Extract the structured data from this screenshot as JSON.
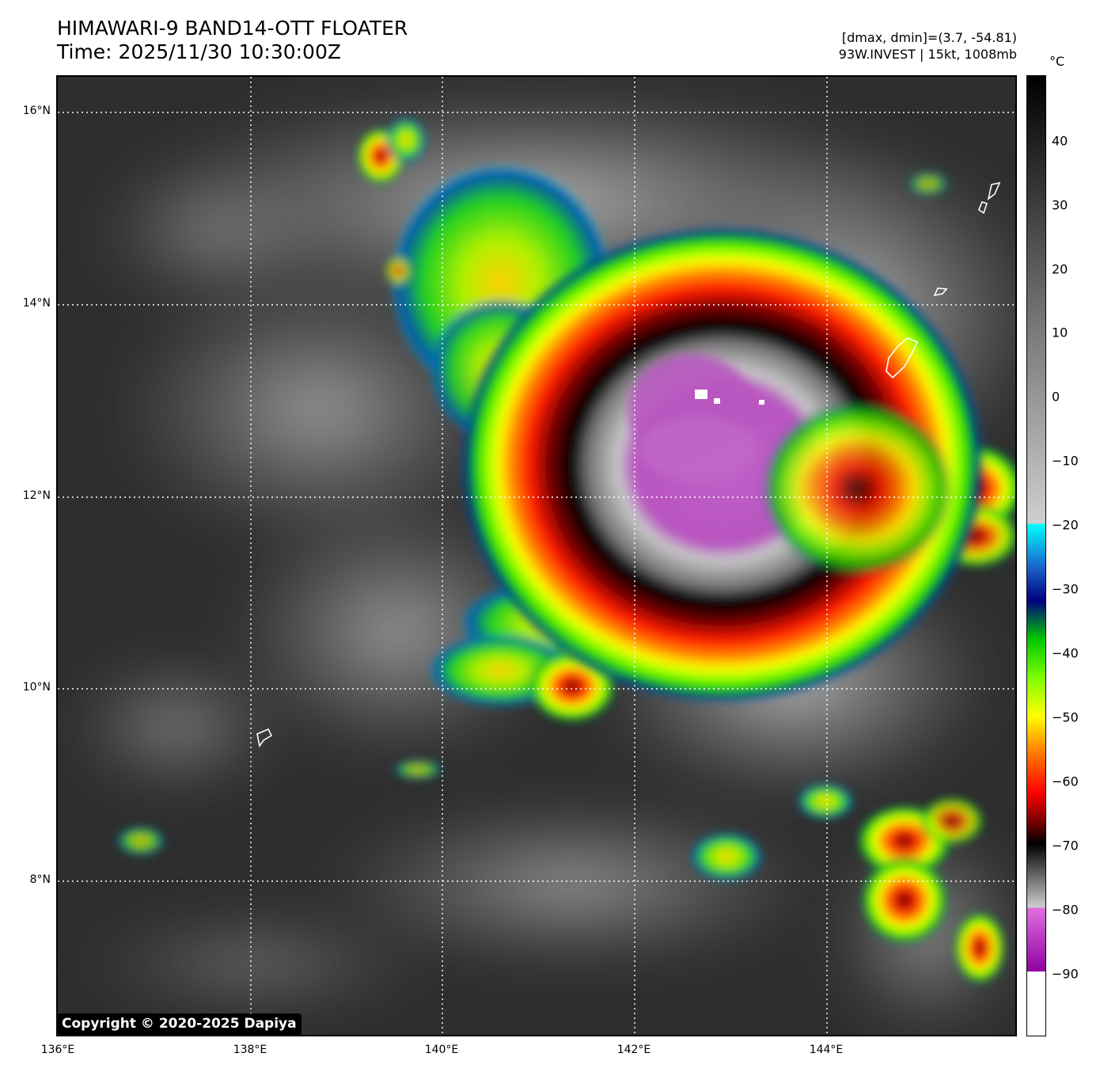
{
  "header": {
    "title_line1": "HIMAWARI-9 BAND14-OTT FLOATER",
    "title_line2": "Time: 2025/11/30 10:30:00Z",
    "info_line1": "[dmax, dmin]=(3.7, -54.81)",
    "info_line2": "93W.INVEST | 15kt, 1008mb"
  },
  "map": {
    "lat_labels": [
      "16°N",
      "14°N",
      "12°N",
      "10°N",
      "8°N"
    ],
    "lat_values": [
      16,
      14,
      12,
      10,
      8
    ],
    "lon_labels": [
      "136°E",
      "138°E",
      "140°E",
      "142°E",
      "144°E"
    ],
    "lon_values": [
      136,
      138,
      140,
      142,
      144
    ],
    "extent": {
      "lon_min": 136,
      "lon_max": 146,
      "lat_min": 6.3,
      "lat_max": 16.3
    },
    "storm_center": {
      "lon": 142.7,
      "lat": 13.0
    },
    "copyright": "Copyright © 2020-2025 Dapiya"
  },
  "colorbar": {
    "unit": "°C",
    "tick_labels": [
      "40",
      "30",
      "20",
      "10",
      "0",
      "−10",
      "−20",
      "−30",
      "−40",
      "−50",
      "−60",
      "−70",
      "−80",
      "−90"
    ],
    "tick_values": [
      40,
      30,
      20,
      10,
      0,
      -10,
      -20,
      -30,
      -40,
      -50,
      -60,
      -70,
      -80,
      -90
    ],
    "range": [
      -100,
      50
    ],
    "colors": {
      "warm_black": "#000000",
      "gray_mid": "#7a7a7a",
      "gray_light": "#cfcfcf",
      "cyan": "#00ffff",
      "blue": "#1a5fc8",
      "navy": "#000080",
      "green": "#00c800",
      "lime": "#7cfc00",
      "yellow": "#ffff00",
      "orange": "#ff8c00",
      "red": "#ff0000",
      "dark_red": "#6b0000",
      "magenta": "#e070e0",
      "purple": "#9000a0",
      "white": "#ffffff"
    }
  }
}
